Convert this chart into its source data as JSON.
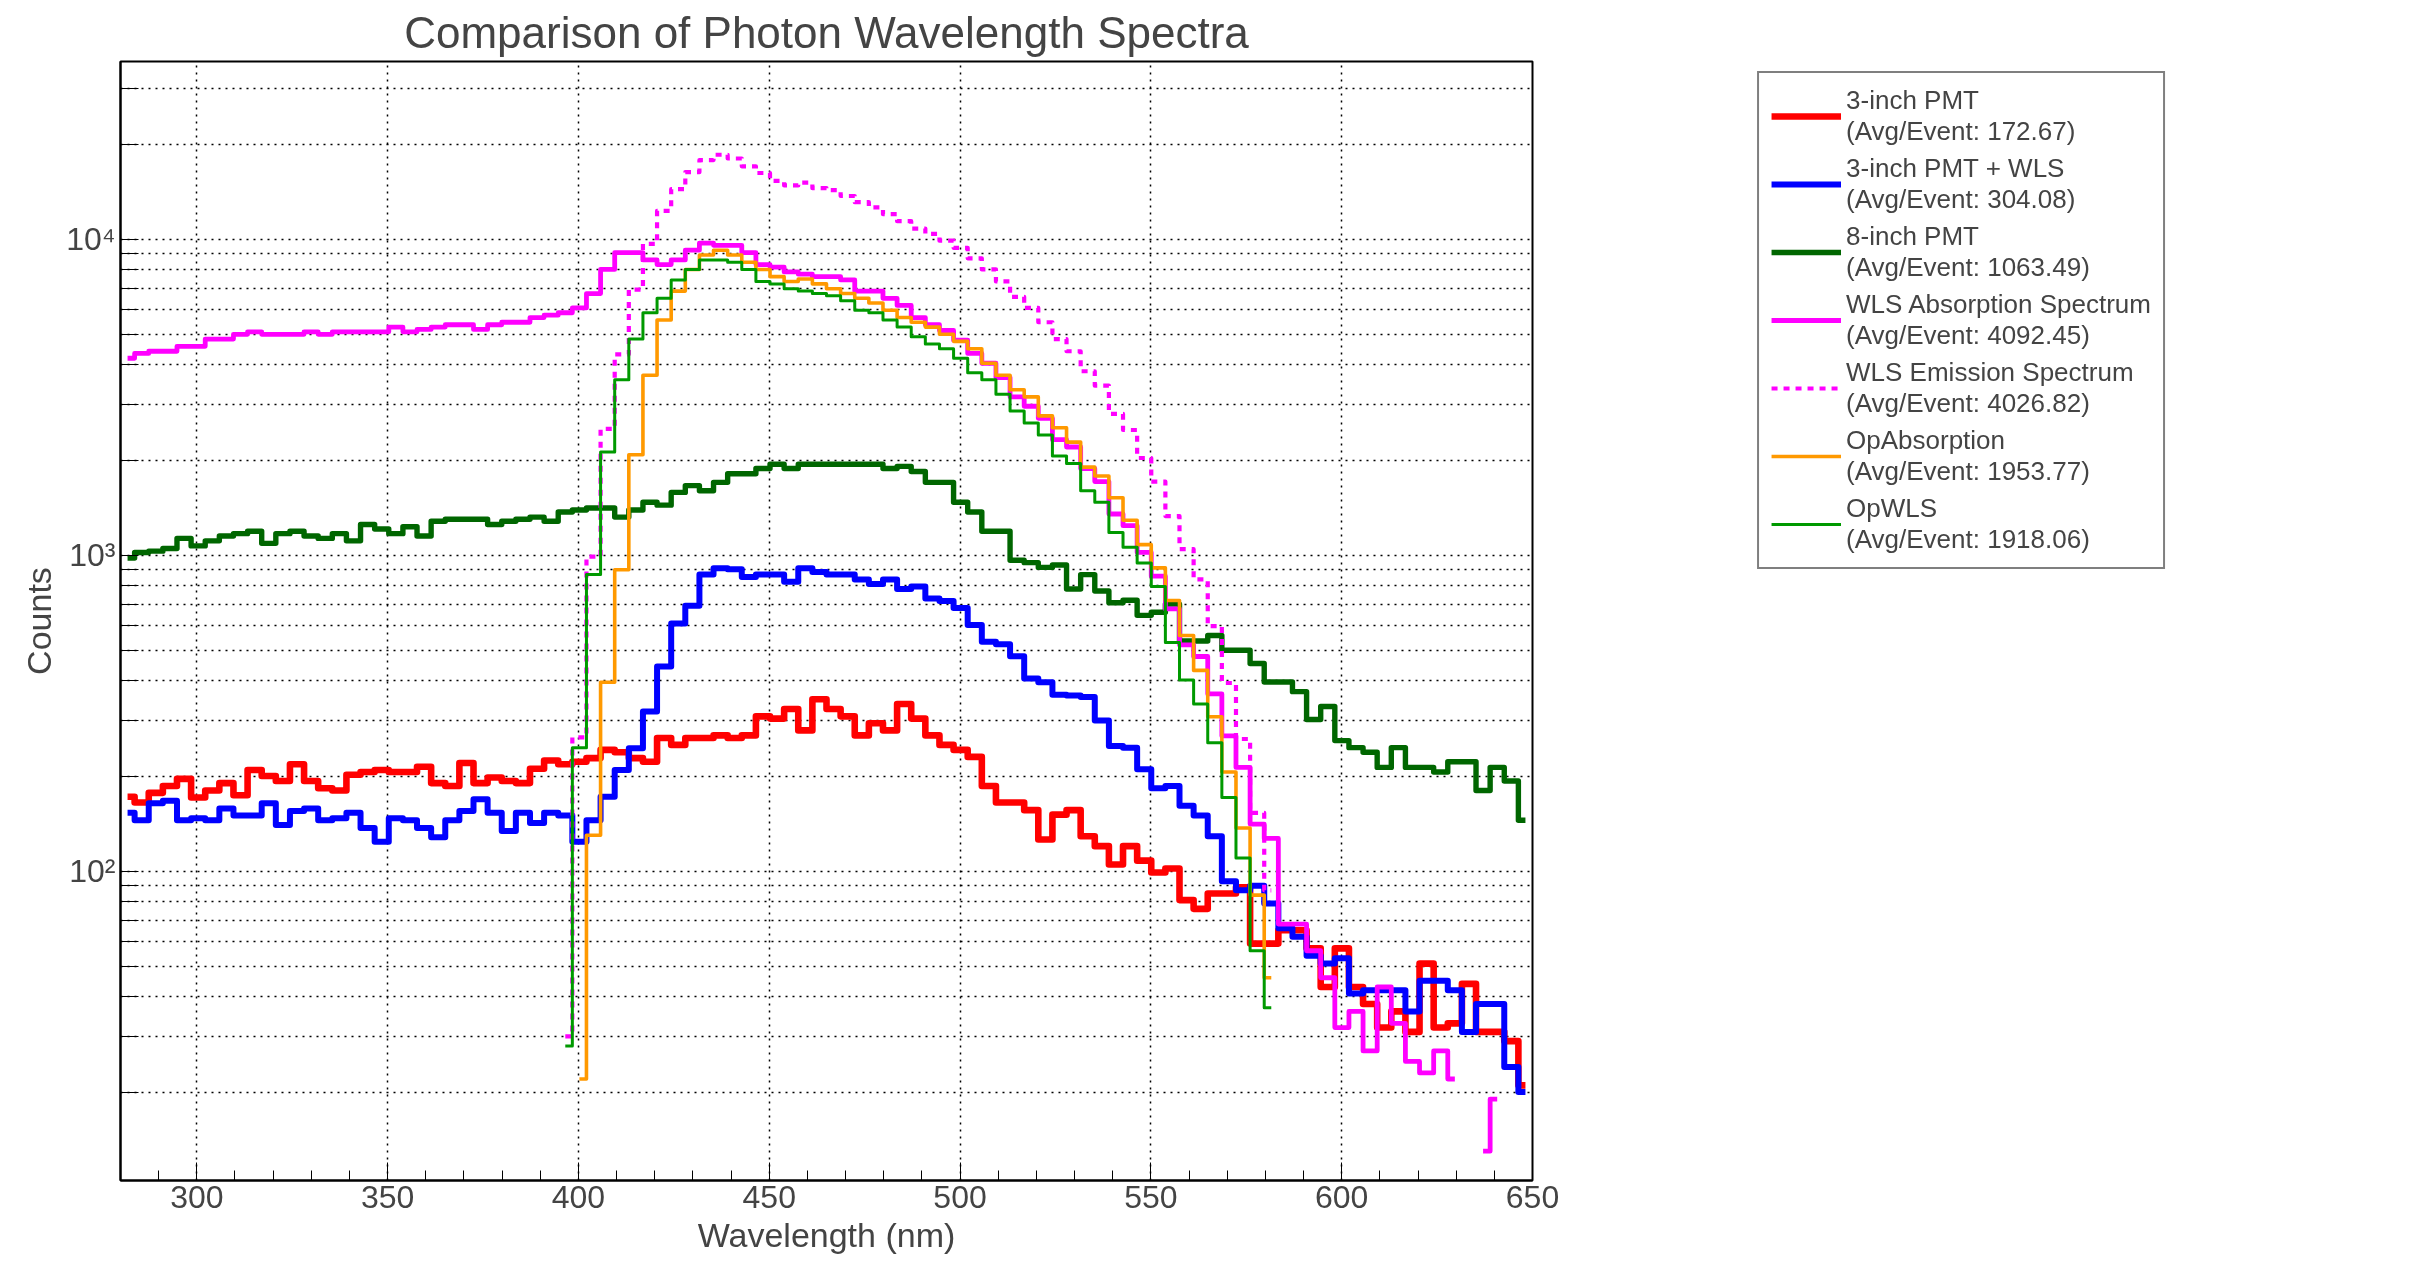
{
  "chart_data": {
    "type": "step",
    "title": "Comparison of Photon Wavelength Spectra",
    "xlabel": "Wavelength (nm)",
    "ylabel": "Counts",
    "x": [
      281.85,
      285.55,
      289.25,
      292.95,
      296.65,
      300.35,
      304.05,
      307.75,
      311.45,
      315.15,
      318.85,
      322.55,
      326.25,
      329.95,
      333.65,
      337.35,
      341.05,
      344.75,
      348.45,
      352.15,
      355.85,
      359.55,
      363.25,
      366.95,
      370.65,
      374.35,
      378.05,
      381.75,
      385.45,
      389.15,
      392.85,
      396.55,
      400.25,
      403.95,
      407.65,
      411.35,
      415.05,
      418.75,
      422.45,
      426.15,
      429.85,
      433.55,
      437.25,
      440.95,
      444.65,
      448.35,
      452.05,
      455.75,
      459.45,
      463.15,
      466.85,
      470.55,
      474.25,
      477.95,
      481.65,
      485.35,
      489.05,
      492.75,
      496.45,
      500.15,
      503.85,
      507.55,
      511.25,
      514.95,
      518.65,
      522.35,
      526.05,
      529.75,
      533.45,
      537.15,
      540.85,
      544.55,
      548.25,
      551.95,
      555.65,
      559.35,
      563.05,
      566.75,
      570.45,
      574.15,
      577.85,
      581.55,
      585.25,
      588.95,
      592.65,
      596.35,
      600.05,
      603.75,
      607.45,
      611.15,
      614.85,
      618.55,
      622.25,
      625.95,
      629.65,
      633.35,
      637.05,
      640.75,
      644.45,
      648.15
    ],
    "series": [
      {
        "name": "3-inch PMT\n(Avg/Event: 172.67)",
        "color": "#ff0000",
        "values": [
          172,
          165,
          177,
          186,
          196,
          171,
          180,
          190,
          174,
          209,
          200,
          193,
          218,
          193,
          183,
          180,
          202,
          206,
          209,
          206,
          206,
          214,
          190,
          186,
          220,
          190,
          198,
          193,
          190,
          211,
          224,
          218,
          222,
          228,
          242,
          238,
          228,
          222,
          264,
          251,
          264,
          264,
          269,
          264,
          269,
          309,
          304,
          326,
          279,
          350,
          326,
          309,
          269,
          294,
          279,
          338,
          304,
          269,
          251,
          242,
          230,
          186,
          165,
          165,
          156,
          126,
          151,
          156,
          129,
          120,
          105,
          120,
          108,
          99,
          102,
          81,
          76,
          85,
          85,
          89,
          59,
          59,
          65,
          65,
          57,
          43,
          57,
          43,
          38,
          32,
          36,
          31,
          51,
          32,
          33,
          44,
          31,
          31,
          29,
          21
        ]
      },
      {
        "name": "3-inch PMT + WLS\n(Avg/Event: 304.08)",
        "color": "#0000ff",
        "values": [
          153,
          145,
          164,
          167,
          145,
          147,
          145,
          158,
          150,
          150,
          164,
          140,
          155,
          158,
          145,
          147,
          153,
          137,
          124,
          147,
          145,
          137,
          128,
          145,
          155,
          169,
          153,
          134,
          153,
          142,
          153,
          150,
          124,
          145,
          172,
          209,
          245,
          320,
          444,
          608,
          692,
          868,
          909,
          903,
          853,
          868,
          868,
          824,
          909,
          884,
          868,
          868,
          838,
          810,
          838,
          782,
          796,
          729,
          716,
          680,
          601,
          532,
          523,
          479,
          407,
          396,
          362,
          360,
          356,
          300,
          249,
          246,
          210,
          183,
          186,
          161,
          150,
          129,
          93,
          87,
          90,
          79,
          66,
          62,
          54,
          51,
          53,
          41,
          42,
          42,
          42,
          36,
          45,
          45,
          42,
          31,
          38,
          38,
          24,
          20
        ]
      },
      {
        "name": "8-inch PMT\n(Avg/Event: 1063.49)",
        "color": "#006600",
        "values": [
          980,
          1020,
          1030,
          1050,
          1130,
          1070,
          1110,
          1150,
          1170,
          1190,
          1090,
          1170,
          1190,
          1150,
          1130,
          1170,
          1110,
          1250,
          1210,
          1170,
          1230,
          1150,
          1280,
          1300,
          1300,
          1300,
          1250,
          1280,
          1300,
          1320,
          1280,
          1370,
          1390,
          1410,
          1410,
          1320,
          1390,
          1470,
          1440,
          1580,
          1660,
          1600,
          1700,
          1810,
          1810,
          1880,
          1940,
          1880,
          1940,
          1940,
          1940,
          1940,
          1940,
          1940,
          1880,
          1910,
          1840,
          1700,
          1700,
          1470,
          1370,
          1190,
          1190,
          964,
          947,
          915,
          931,
          782,
          868,
          770,
          707,
          720,
          645,
          660,
          700,
          535,
          535,
          557,
          500,
          500,
          454,
          397,
          397,
          370,
          302,
          332,
          259,
          246,
          238,
          213,
          246,
          213,
          213,
          206,
          222,
          222,
          180,
          213,
          193,
          145
        ]
      },
      {
        "name": "WLS Absorption Spectrum\n(Avg/Event: 4092.45)",
        "color": "#ff00ff",
        "values": [
          4200,
          4350,
          4420,
          4420,
          4580,
          4580,
          4830,
          4830,
          5000,
          5090,
          5000,
          5000,
          5000,
          5090,
          5000,
          5090,
          5090,
          5090,
          5090,
          5270,
          5090,
          5180,
          5270,
          5360,
          5360,
          5180,
          5360,
          5460,
          5460,
          5650,
          5750,
          5850,
          6060,
          6730,
          8020,
          9070,
          9070,
          8600,
          8310,
          8600,
          9230,
          9720,
          9560,
          9560,
          9070,
          8310,
          8160,
          7880,
          7750,
          7610,
          7610,
          7430,
          6850,
          6850,
          6500,
          6170,
          5650,
          5360,
          5140,
          4790,
          4350,
          4050,
          3650,
          3170,
          2960,
          2710,
          2320,
          2200,
          1880,
          1710,
          1350,
          1240,
          1020,
          858,
          676,
          520,
          478,
          364,
          268,
          213,
          141,
          127,
          68,
          68,
          56,
          46,
          32,
          36,
          27,
          43,
          33,
          25,
          23,
          27,
          22,
          null,
          13,
          19,
          null,
          null
        ]
      },
      {
        "name": "WLS Emission Spectrum\n(Avg/Event: 4026.82)",
        "color": "#ff00ff",
        "line_style": "dotted",
        "values": [
          null,
          null,
          null,
          null,
          null,
          null,
          null,
          null,
          null,
          null,
          null,
          null,
          null,
          null,
          null,
          null,
          null,
          null,
          null,
          null,
          null,
          null,
          null,
          null,
          null,
          null,
          null,
          null,
          null,
          null,
          null,
          30,
          265,
          990,
          2510,
          4320,
          6920,
          9660,
          12300,
          14400,
          16300,
          17800,
          18500,
          18000,
          17000,
          16200,
          15300,
          14800,
          15100,
          14500,
          14300,
          13700,
          13100,
          12600,
          12000,
          11400,
          10800,
          10400,
          9890,
          9390,
          8700,
          8020,
          7350,
          6570,
          6060,
          5460,
          4830,
          4420,
          3820,
          3440,
          2800,
          2490,
          2030,
          1710,
          1330,
          1045,
          838,
          596,
          394,
          262,
          153,
          87,
          null,
          null,
          null,
          null,
          null,
          null,
          null,
          null,
          null,
          null,
          null,
          null,
          null,
          null,
          null,
          null,
          null,
          null
        ]
      },
      {
        "name": "OpAbsorption\n(Avg/Event: 1953.77)",
        "color": "#ff9900",
        "values": [
          null,
          null,
          null,
          null,
          null,
          null,
          null,
          null,
          null,
          null,
          null,
          null,
          null,
          null,
          null,
          null,
          null,
          null,
          null,
          null,
          null,
          null,
          null,
          null,
          null,
          null,
          null,
          null,
          null,
          null,
          null,
          null,
          22,
          130,
          396,
          899,
          2080,
          3710,
          5550,
          6850,
          8020,
          8910,
          9230,
          8910,
          8450,
          8020,
          7610,
          7350,
          7480,
          7220,
          6970,
          6730,
          6500,
          6280,
          5960,
          5650,
          5460,
          5270,
          5000,
          4750,
          4500,
          4050,
          3710,
          3340,
          3170,
          2760,
          2530,
          2280,
          1900,
          1780,
          1520,
          1290,
          1080,
          912,
          719,
          557,
          432,
          308,
          206,
          137,
          84,
          46,
          null,
          null,
          null,
          null,
          null,
          null,
          null,
          null,
          null,
          null,
          null,
          null,
          null,
          null,
          null,
          null,
          null,
          null
        ]
      },
      {
        "name": "OpWLS\n(Avg/Event: 1918.06)",
        "color": "#009900",
        "values": [
          null,
          null,
          null,
          null,
          null,
          null,
          null,
          null,
          null,
          null,
          null,
          null,
          null,
          null,
          null,
          null,
          null,
          null,
          null,
          null,
          null,
          null,
          null,
          null,
          null,
          null,
          null,
          null,
          null,
          null,
          null,
          28,
          246,
          868,
          2120,
          3590,
          4830,
          5850,
          6500,
          7430,
          8020,
          8600,
          8600,
          8450,
          8020,
          7350,
          7220,
          6970,
          6850,
          6730,
          6620,
          6390,
          5960,
          5850,
          5550,
          5270,
          4910,
          4660,
          4500,
          4200,
          3780,
          3590,
          3230,
          2860,
          2620,
          2400,
          2060,
          1950,
          1600,
          1470,
          1180,
          1060,
          944,
          796,
          529,
          403,
          338,
          255,
          171,
          110,
          56,
          37,
          null,
          null,
          null,
          null,
          null,
          null,
          null,
          null,
          null,
          null,
          null,
          null,
          null,
          null,
          null,
          null,
          null,
          null
        ]
      }
    ],
    "xlim": [
      280,
      650
    ],
    "ylim": [
      10.5,
      36500
    ],
    "xticks": [
      300,
      350,
      400,
      450,
      500,
      550,
      600,
      650
    ],
    "yticks": [
      {
        "value": 20,
        "label": null
      },
      {
        "value": 30,
        "label": null
      },
      {
        "value": 40,
        "label": null
      },
      {
        "value": 50,
        "label": null
      },
      {
        "value": 60,
        "label": null
      },
      {
        "value": 70,
        "label": null
      },
      {
        "value": 80,
        "label": null
      },
      {
        "value": 90,
        "label": null
      },
      {
        "value": 100,
        "label": "10²"
      },
      {
        "value": 200,
        "label": null
      },
      {
        "value": 300,
        "label": null
      },
      {
        "value": 400,
        "label": null
      },
      {
        "value": 500,
        "label": null
      },
      {
        "value": 600,
        "label": null
      },
      {
        "value": 700,
        "label": null
      },
      {
        "value": 800,
        "label": null
      },
      {
        "value": 900,
        "label": null
      },
      {
        "value": 1000,
        "label": "10³"
      },
      {
        "value": 2000,
        "label": null
      },
      {
        "value": 3000,
        "label": null
      },
      {
        "value": 4000,
        "label": null
      },
      {
        "value": 5000,
        "label": null
      },
      {
        "value": 6000,
        "label": null
      },
      {
        "value": 7000,
        "label": null
      },
      {
        "value": 8000,
        "label": null
      },
      {
        "value": 9000,
        "label": null
      },
      {
        "value": 10000,
        "label": "10⁴"
      },
      {
        "value": 20000,
        "label": null
      },
      {
        "value": 30000,
        "label": null
      }
    ],
    "log": true,
    "grid": true,
    "legend": "right"
  }
}
